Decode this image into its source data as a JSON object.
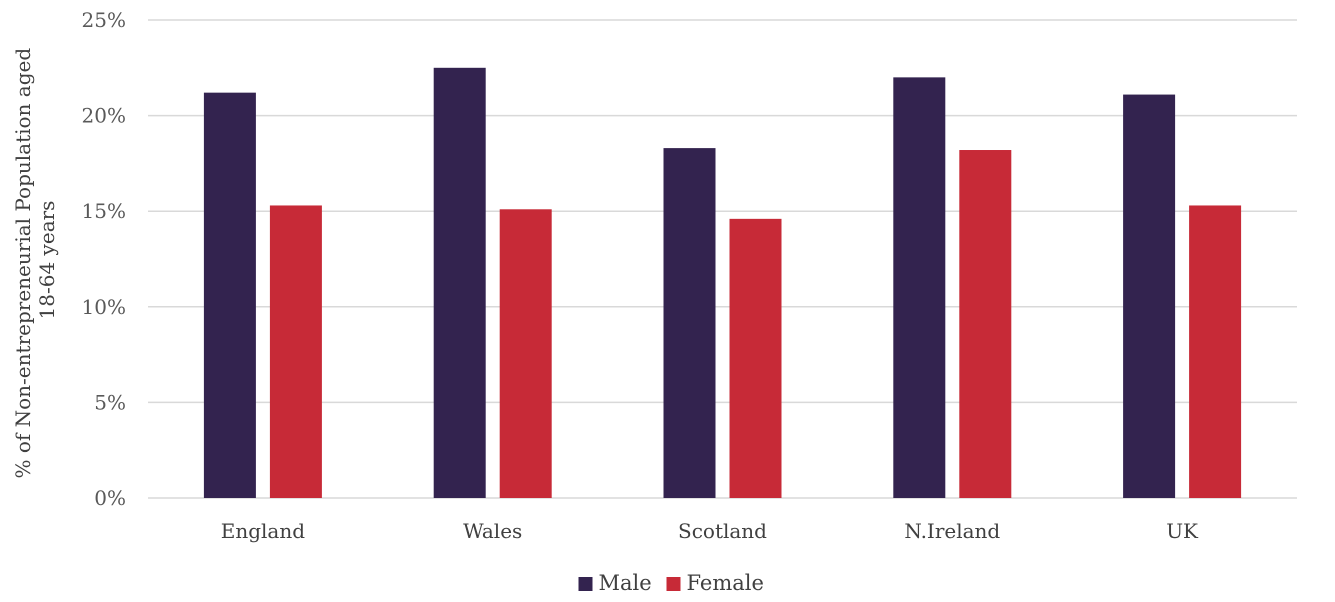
{
  "chart_data": {
    "type": "bar",
    "title": "",
    "xlabel": "",
    "ylabel": [
      "% of Non-entrepreneurial Population aged",
      "18-64 years"
    ],
    "categories": [
      "England",
      "Wales",
      "Scotland",
      "N.Ireland",
      "UK"
    ],
    "series": [
      {
        "name": "Male",
        "color": "#33234f",
        "values": [
          21.2,
          22.5,
          18.3,
          22.0,
          21.1
        ]
      },
      {
        "name": "Female",
        "color": "#c72a37",
        "values": [
          15.3,
          15.1,
          14.6,
          18.2,
          15.3
        ]
      }
    ],
    "ylim": [
      0,
      25
    ],
    "yticks": [
      "0%",
      "5%",
      "10%",
      "15%",
      "20%",
      "25%"
    ],
    "grid": true,
    "legend": "bottom"
  }
}
